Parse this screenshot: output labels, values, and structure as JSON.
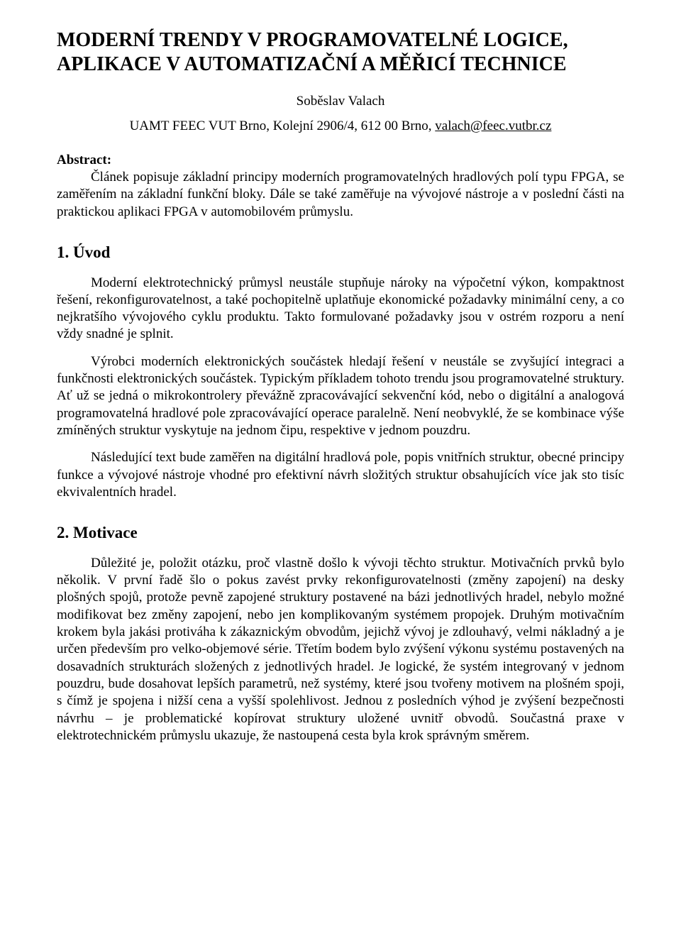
{
  "title": "MODERNÍ TRENDY V PROGRAMOVATELNÉ LOGICE, APLIKACE V AUTOMATIZAČNÍ A MĚŘICÍ TECHNICE",
  "author": "Soběslav Valach",
  "affiliation_prefix": "UAMT FEEC VUT Brno, Kolejní 2906/4, 612 00 Brno, ",
  "affiliation_email": "valach@feec.vutbr.cz",
  "abstract_label": "Abstract:",
  "abstract_body": "Článek popisuje základní principy moderních programovatelných hradlových polí typu FPGA, se zaměřením na základní funkční bloky. Dále se také zaměřuje na vývojové nástroje a v poslední části na praktickou aplikaci FPGA v automobilovém průmyslu.",
  "sections": {
    "s1": {
      "heading": "1. Úvod",
      "paragraphs": [
        "Moderní elektrotechnický průmysl neustále stupňuje nároky na výpočetní výkon, kompaktnost řešení, rekonfigurovatelnost, a také pochopitelně uplatňuje ekonomické požadavky minimální ceny, a co nejkratšího vývojového cyklu produktu. Takto formulované požadavky jsou v ostrém rozporu a není vždy snadné je splnit.",
        "Výrobci moderních elektronických součástek hledají řešení v neustále se zvyšující integraci a funkčnosti elektronických součástek. Typickým příkladem tohoto trendu jsou programovatelné struktury. Ať už se jedná o mikrokontrolery převážně zpracovávající sekvenční kód, nebo o digitální a analogová programovatelná hradlové pole zpracovávající operace paralelně. Není neobvyklé, že se kombinace výše zmíněných struktur vyskytuje na jednom čipu, respektive v jednom pouzdru.",
        "Následující text bude zaměřen na digitální hradlová pole, popis vnitřních struktur, obecné principy funkce a vývojové nástroje vhodné pro efektivní návrh složitých struktur obsahujících více jak sto tisíc ekvivalentních hradel."
      ]
    },
    "s2": {
      "heading": "2. Motivace",
      "paragraphs": [
        "Důležité je, položit otázku, proč vlastně došlo k vývoji těchto struktur. Motivačních prvků bylo několik. V první řadě šlo o pokus zavést prvky rekonfigurovatelnosti (změny zapojení) na desky plošných spojů, protože pevně zapojené struktury postavené na bázi jednotlivých hradel, nebylo možné modifikovat bez změny zapojení, nebo jen komplikovaným systémem propojek. Druhým motivačním krokem byla jakási protiváha k zákaznickým obvodům, jejichž vývoj je zdlouhavý, velmi nákladný a je určen především pro velko-objemové série. Třetím bodem bylo zvýšení výkonu systému postavených na dosavadních strukturách složených z jednotlivých hradel. Je logické, že systém integrovaný v jednom pouzdru, bude dosahovat lepších parametrů, než systémy, které jsou tvořeny motivem na plošném spoji, s čímž je spojena i nižší cena a vyšší spolehlivost. Jednou z posledních výhod je zvýšení bezpečnosti návrhu – je problematické kopírovat struktury uložené uvnitř obvodů. Součastná praxe v elektrotechnickém průmyslu ukazuje, že nastoupená cesta byla krok správným směrem."
      ]
    }
  }
}
